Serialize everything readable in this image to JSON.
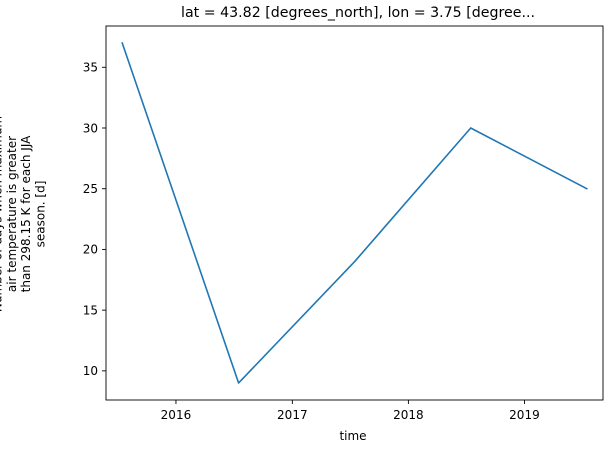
{
  "chart_data": {
    "type": "line",
    "title": "lat = 43.82 [degrees_north], lon = 3.75 [degree...",
    "xlabel": "time",
    "ylabel_lines": [
      "Number of days when maximum",
      "air temperature is greater",
      "than 298.15 K for each JJA",
      "season. [d]"
    ],
    "x_ticks": [
      "2016",
      "2017",
      "2018",
      "2019"
    ],
    "y_ticks": [
      "10",
      "15",
      "20",
      "25",
      "30",
      "35"
    ],
    "xlim": [
      "2015-05-26",
      "2019-09-05"
    ],
    "ylim": [
      7.6,
      38.4
    ],
    "grid": false,
    "series": [
      {
        "color": "#1f77b4",
        "points": [
          {
            "x": "2015-07-16",
            "y": 37
          },
          {
            "x": "2016-07-16",
            "y": 9
          },
          {
            "x": "2017-07-16",
            "y": 19
          },
          {
            "x": "2018-07-16",
            "y": 30
          },
          {
            "x": "2019-07-16",
            "y": 25
          }
        ]
      }
    ]
  }
}
